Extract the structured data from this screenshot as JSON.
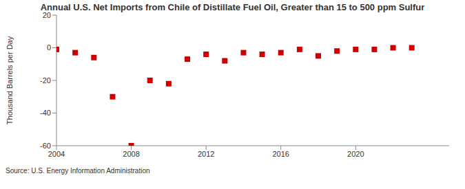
{
  "chart_data": {
    "type": "scatter",
    "title": "Annual U.S. Net Imports from Chile of Distillate Fuel Oil, Greater than 15 to 500 ppm Sulfur",
    "y_label": "Thousand Barrels per Day",
    "source": "Source: U.S. Energy Information Administration",
    "x": [
      2004,
      2005,
      2006,
      2007,
      2008,
      2009,
      2010,
      2011,
      2012,
      2013,
      2014,
      2015,
      2016,
      2017,
      2018,
      2019,
      2020,
      2021,
      2022,
      2023
    ],
    "values": [
      -1,
      -3,
      -6,
      -30,
      -60,
      -20,
      -22,
      -7,
      -4,
      -8,
      -3,
      -4,
      -3,
      -1,
      -5,
      -2,
      -1,
      -1,
      0,
      0
    ],
    "color": "#cc0000",
    "marker": "square",
    "xlim": [
      2004,
      2025
    ],
    "xticks": [
      2004,
      2008,
      2012,
      2016,
      2020
    ],
    "ylim": [
      -60,
      20
    ],
    "yticks": [
      -60,
      -40,
      -20,
      0,
      20
    ],
    "grid": false
  }
}
